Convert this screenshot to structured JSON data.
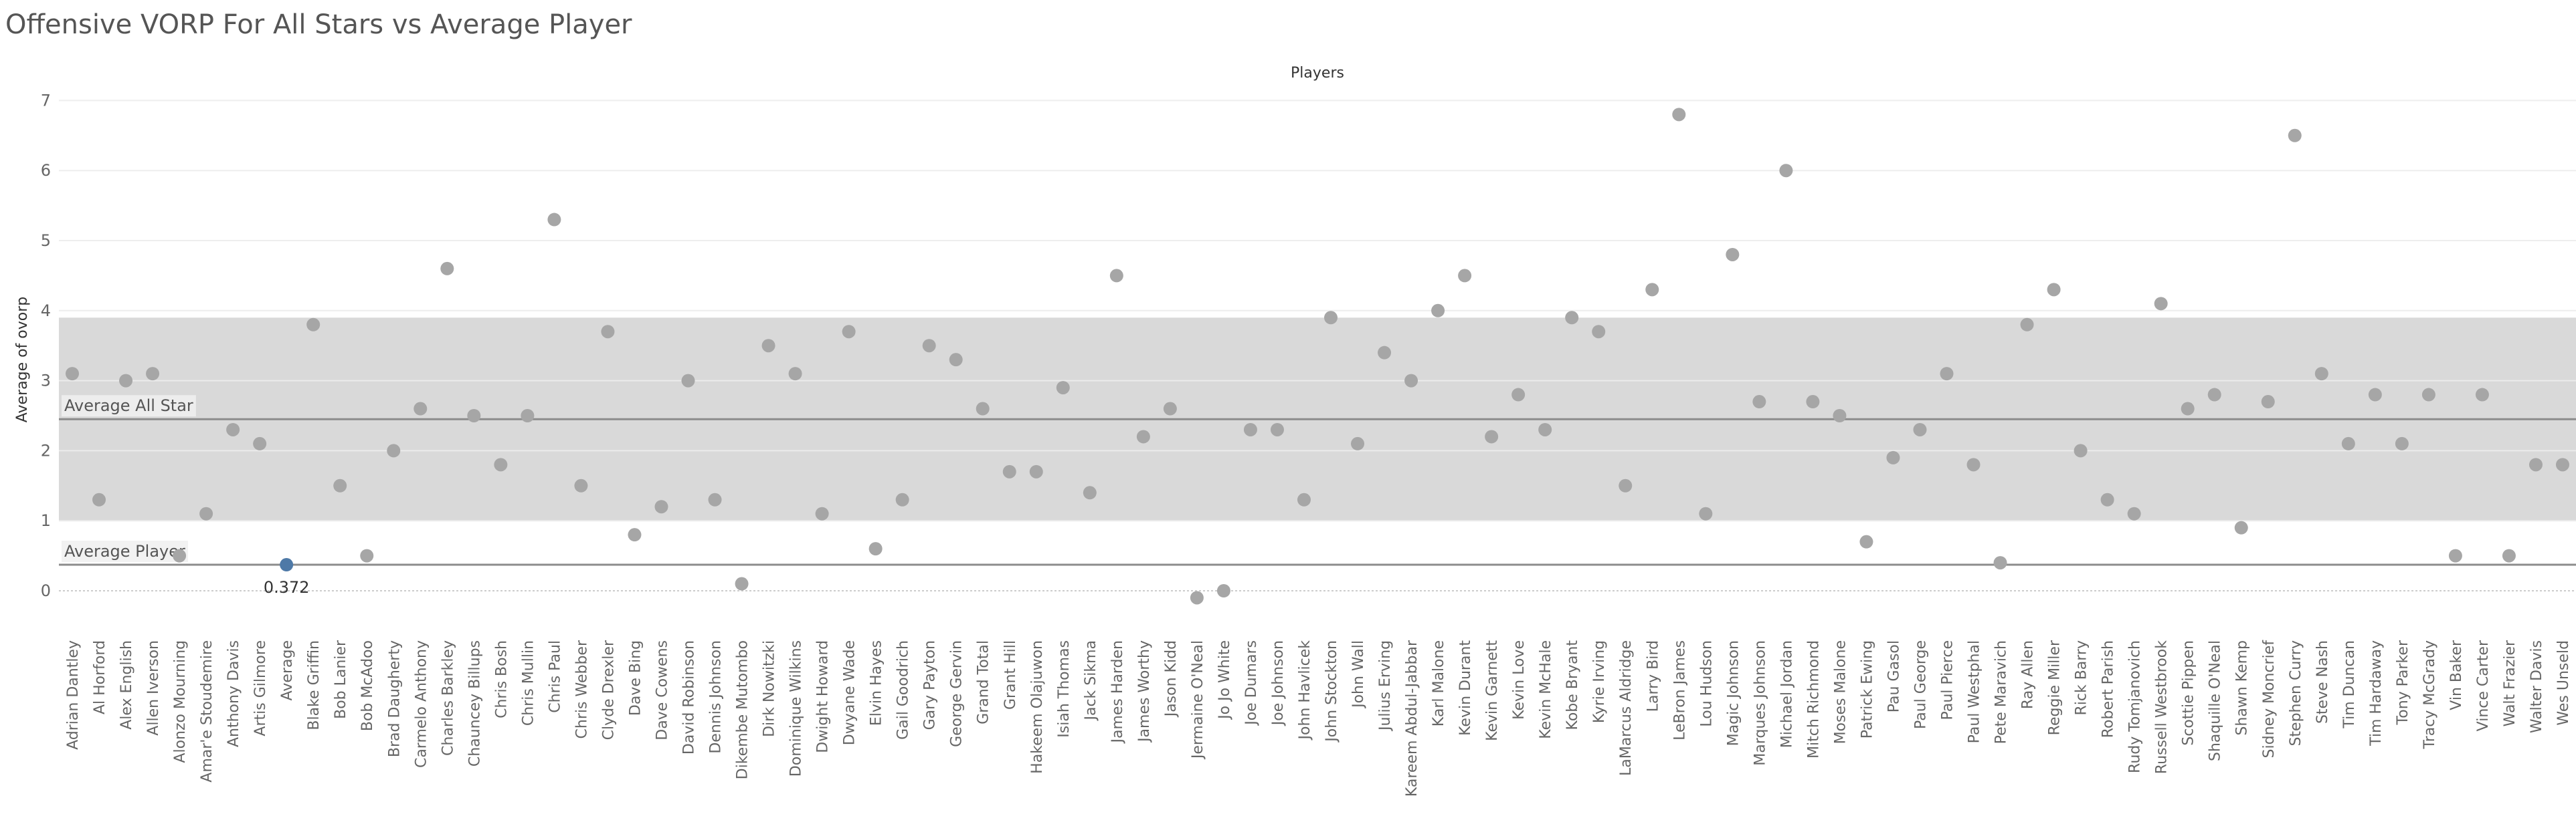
{
  "chart_title": "Offensive VORP For All Stars vs Average Player",
  "colors": {
    "point": "#a6a6a6",
    "highlight_point": "#4e79a7",
    "band": "#d9d9d9",
    "reference_line": "#8c8c8c",
    "gridline": "#eeeeee"
  },
  "chart_data": {
    "type": "scatter",
    "title": "Offensive VORP For All Stars vs Average Player",
    "column_header": "Players",
    "xlabel": "",
    "ylabel": "Average of ovorp",
    "ylim": [
      -0.5,
      7
    ],
    "yticks": [
      0,
      1,
      2,
      3,
      4,
      5,
      6,
      7
    ],
    "grid": true,
    "categories": [
      "Adrian Dantley",
      "Al Horford",
      "Alex English",
      "Allen Iverson",
      "Alonzo Mourning",
      "Amar'e Stoudemire",
      "Anthony Davis",
      "Artis Gilmore",
      "Average",
      "Blake Griffin",
      "Bob Lanier",
      "Bob McAdoo",
      "Brad Daugherty",
      "Carmelo Anthony",
      "Charles Barkley",
      "Chauncey Billups",
      "Chris Bosh",
      "Chris Mullin",
      "Chris Paul",
      "Chris Webber",
      "Clyde Drexler",
      "Dave Bing",
      "Dave Cowens",
      "David Robinson",
      "Dennis Johnson",
      "Dikembe Mutombo",
      "Dirk Nowitzki",
      "Dominique Wilkins",
      "Dwight Howard",
      "Dwyane Wade",
      "Elvin Hayes",
      "Gail Goodrich",
      "Gary Payton",
      "George Gervin",
      "Grand Total",
      "Grant Hill",
      "Hakeem Olajuwon",
      "Isiah Thomas",
      "Jack Sikma",
      "James Harden",
      "James Worthy",
      "Jason Kidd",
      "Jermaine O'Neal",
      "Jo Jo White",
      "Joe Dumars",
      "Joe Johnson",
      "John Havlicek",
      "John Stockton",
      "John Wall",
      "Julius Erving",
      "Kareem Abdul-Jabbar",
      "Karl Malone",
      "Kevin Durant",
      "Kevin Garnett",
      "Kevin Love",
      "Kevin McHale",
      "Kobe Bryant",
      "Kyrie Irving",
      "LaMarcus Aldridge",
      "Larry Bird",
      "LeBron James",
      "Lou Hudson",
      "Magic Johnson",
      "Marques Johnson",
      "Michael Jordan",
      "Mitch Richmond",
      "Moses Malone",
      "Patrick Ewing",
      "Pau Gasol",
      "Paul George",
      "Paul Pierce",
      "Paul Westphal",
      "Pete Maravich",
      "Ray Allen",
      "Reggie Miller",
      "Rick Barry",
      "Robert Parish",
      "Rudy Tomjanovich",
      "Russell Westbrook",
      "Scottie Pippen",
      "Shaquille O'Neal",
      "Shawn Kemp",
      "Sidney Moncrief",
      "Stephen Curry",
      "Steve Nash",
      "Tim Duncan",
      "Tim Hardaway",
      "Tony Parker",
      "Tracy McGrady",
      "Vin Baker",
      "Vince Carter",
      "Walt Frazier",
      "Walter Davis",
      "Wes Unseld"
    ],
    "values": [
      3.1,
      1.3,
      3.0,
      3.1,
      0.5,
      1.1,
      2.3,
      2.1,
      0.372,
      3.8,
      1.5,
      0.5,
      2.0,
      2.6,
      4.6,
      2.5,
      1.8,
      2.5,
      5.3,
      1.5,
      3.7,
      0.8,
      1.2,
      3.0,
      1.3,
      0.1,
      3.5,
      3.1,
      1.1,
      3.7,
      0.6,
      1.3,
      3.5,
      3.3,
      2.6,
      1.7,
      1.7,
      2.9,
      1.4,
      4.5,
      2.2,
      2.6,
      -0.1,
      0.0,
      2.3,
      2.3,
      1.3,
      3.9,
      2.1,
      3.4,
      3.0,
      4.0,
      4.5,
      2.2,
      2.8,
      2.3,
      3.9,
      3.7,
      1.5,
      4.3,
      6.8,
      1.1,
      4.8,
      2.7,
      6.0,
      2.7,
      2.5,
      0.7,
      1.9,
      2.3,
      3.1,
      1.8,
      0.4,
      3.8,
      4.3,
      2.0,
      1.3,
      1.1,
      4.1,
      2.6,
      2.8,
      0.9,
      2.7,
      6.5,
      3.1,
      2.1,
      2.8,
      2.1,
      2.8,
      0.5,
      2.8,
      0.5,
      1.8,
      1.8
    ],
    "highlight": {
      "category": "Average",
      "label": "0.372"
    },
    "reference_band": [
      1.0,
      3.9
    ],
    "reference_lines": [
      {
        "name": "Average All Star",
        "value": 2.45
      },
      {
        "name": "Average Player",
        "value": 0.372
      }
    ]
  }
}
